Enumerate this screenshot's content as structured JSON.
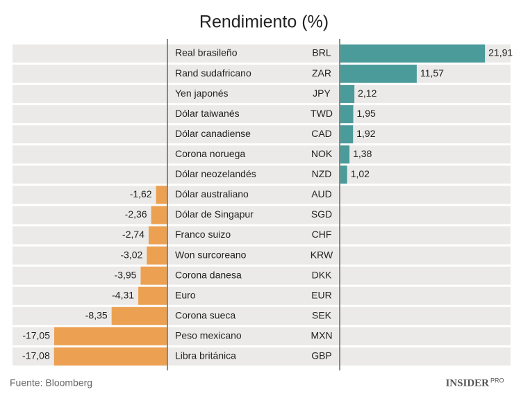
{
  "chart_data": {
    "type": "diverging-bar",
    "title": "Rendimiento (%)",
    "categories": [
      "Real brasileño",
      "Rand sudafricano",
      "Yen japonés",
      "Dólar taiwanés",
      "Dólar canadiense",
      "Corona noruega",
      "Dólar neozelandés",
      "Dólar australiano",
      "Dólar de Singapur",
      "Franco suizo",
      "Won surcoreano",
      "Corona danesa",
      "Euro",
      "Corona sueca",
      "Peso mexicano",
      "Libra británica"
    ],
    "codes": [
      "BRL",
      "ZAR",
      "JPY",
      "TWD",
      "CAD",
      "NOK",
      "NZD",
      "AUD",
      "SGD",
      "CHF",
      "KRW",
      "DKK",
      "EUR",
      "SEK",
      "MXN",
      "GBP"
    ],
    "values": [
      21.91,
      11.57,
      2.12,
      1.95,
      1.92,
      1.38,
      1.02,
      -1.62,
      -2.36,
      -2.74,
      -3.02,
      -3.95,
      -4.31,
      -8.35,
      -17.05,
      -17.08
    ],
    "value_labels": [
      "21,91",
      "11,57",
      "2,12",
      "1,95",
      "1,92",
      "1,38",
      "1,02",
      "-1,62",
      "-2,36",
      "-2,74",
      "-3,02",
      "-3,95",
      "-4,31",
      "-8,35",
      "-17,05",
      "-17,08"
    ],
    "positive_color": "#4b9b9b",
    "negative_color": "#eca152",
    "source": "Fuente: Bloomberg",
    "logo": "INSIDER",
    "logo_suffix": "PRO"
  }
}
